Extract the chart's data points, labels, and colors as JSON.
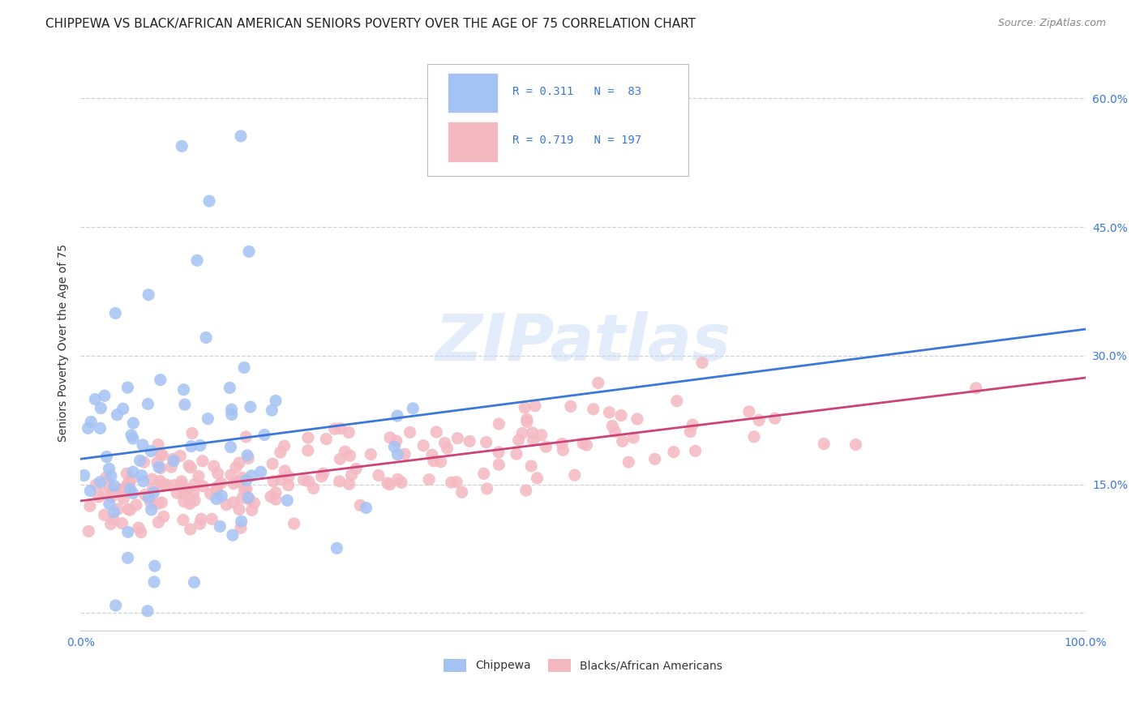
{
  "title": "CHIPPEWA VS BLACK/AFRICAN AMERICAN SENIORS POVERTY OVER THE AGE OF 75 CORRELATION CHART",
  "source": "Source: ZipAtlas.com",
  "ylabel": "Seniors Poverty Over the Age of 75",
  "xlim": [
    0.0,
    1.0
  ],
  "ylim": [
    -0.02,
    0.65
  ],
  "yticks": [
    0.0,
    0.15,
    0.3,
    0.45,
    0.6
  ],
  "yticklabels": [
    "",
    "15.0%",
    "30.0%",
    "45.0%",
    "60.0%"
  ],
  "chippewa_color": "#a4c2f4",
  "black_color": "#f4b8c1",
  "line_blue": "#3c78d8",
  "line_pink": "#cc4477",
  "watermark_color": "#c9daf8",
  "legend_R1": "R = 0.311",
  "legend_N1": "N =  83",
  "legend_R2": "R = 0.719",
  "legend_N2": "N = 197",
  "chippewa_label": "Chippewa",
  "black_label": "Blacks/African Americans",
  "background_color": "#ffffff",
  "grid_color": "#cccccc",
  "n_chippewa": 83,
  "n_black": 197,
  "chippewa_R": 0.311,
  "black_R": 0.719,
  "title_fontsize": 11,
  "axis_color": "#3c78d8",
  "tick_fontsize": 10,
  "dot_size": 120
}
